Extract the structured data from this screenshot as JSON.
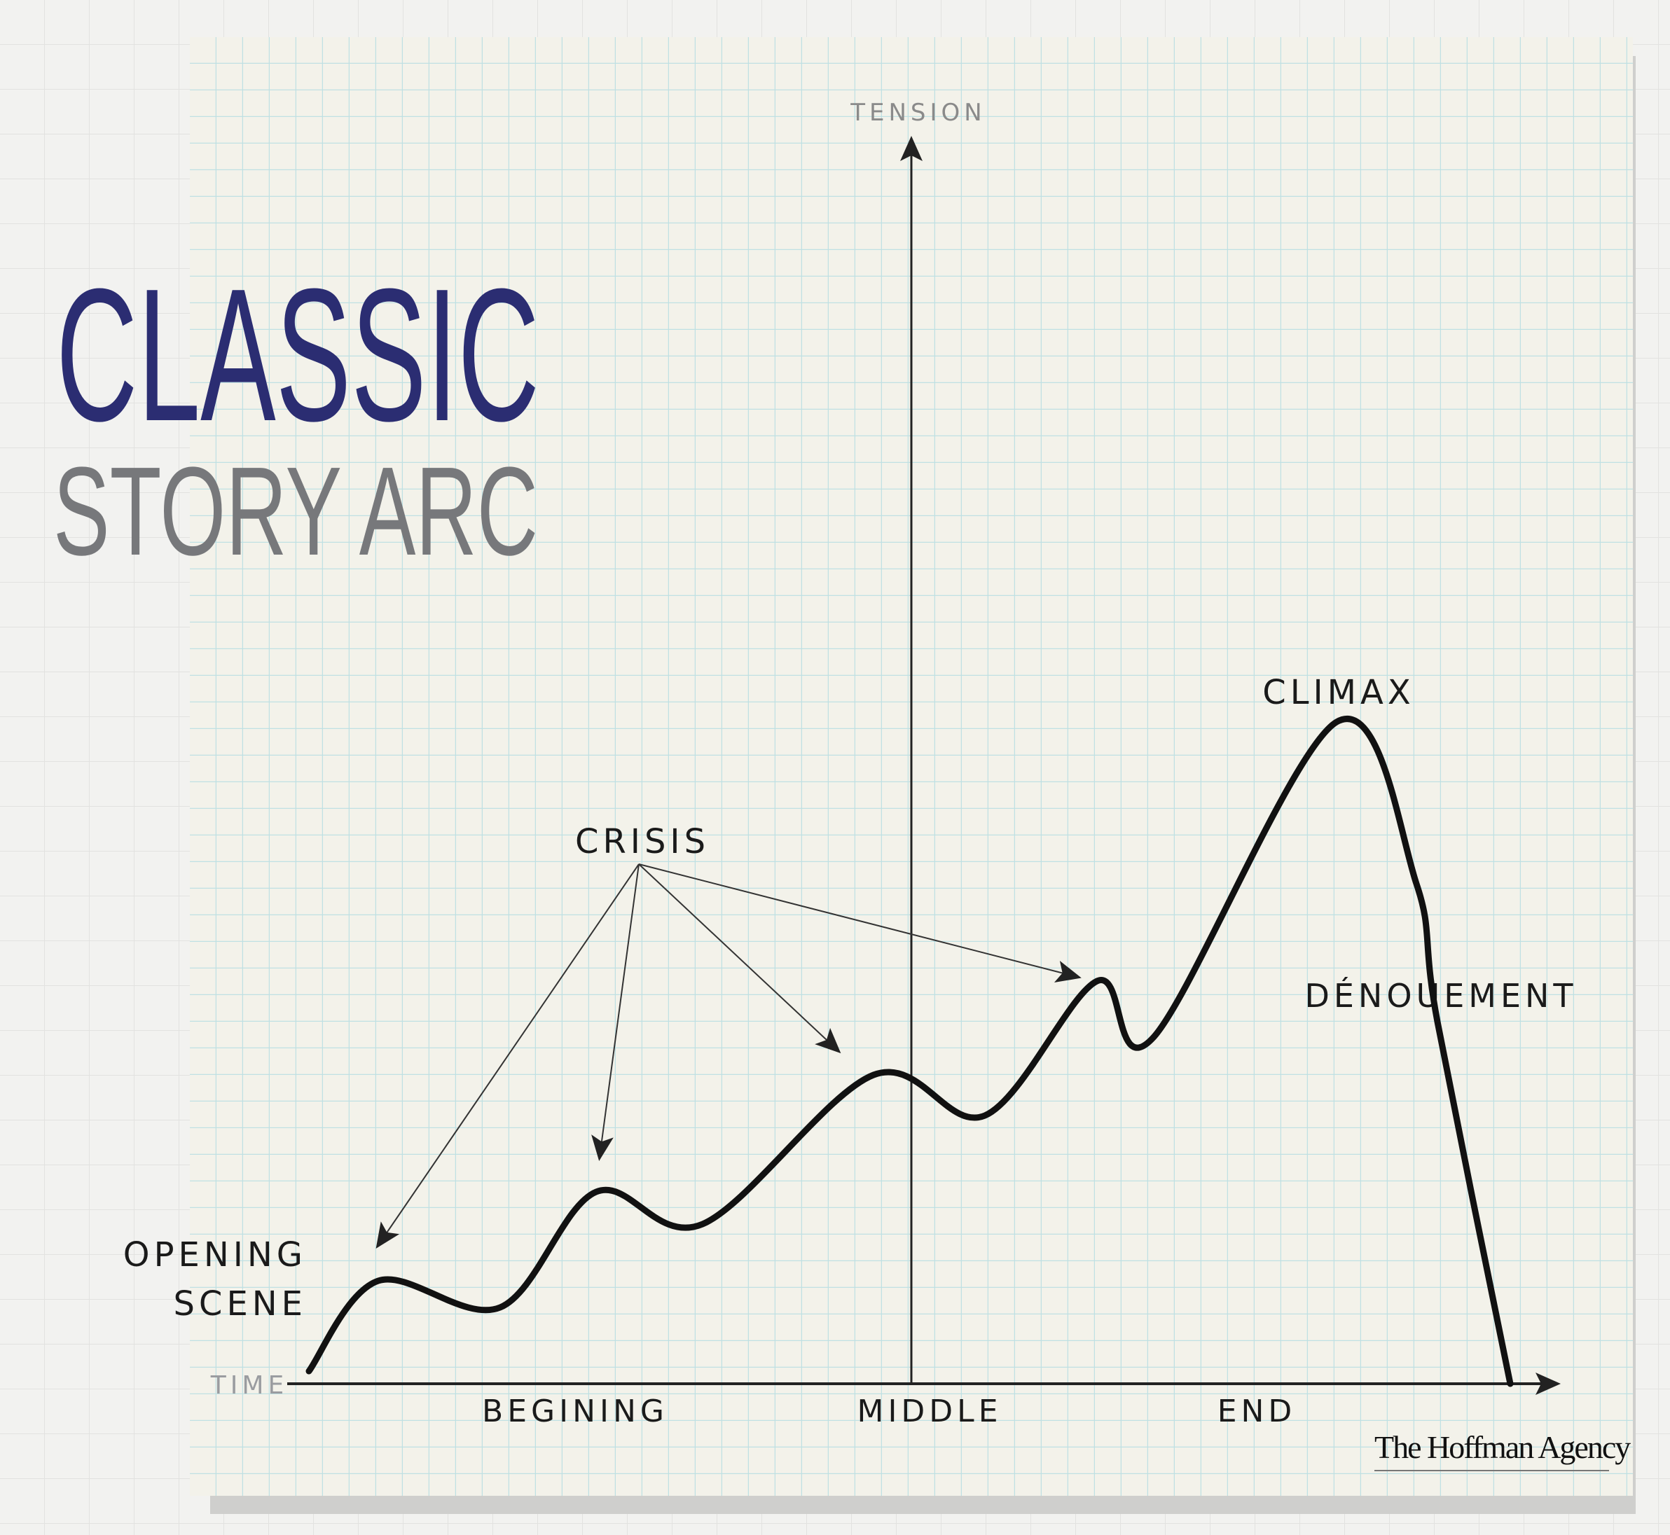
{
  "title": {
    "line1": "CLASSIC",
    "line2": "STORY ARC"
  },
  "axes": {
    "y_label": "TENSION",
    "x_label": "TIME"
  },
  "sections": [
    "BEGINING",
    "MIDDLE",
    "END"
  ],
  "annotations": {
    "opening_line1": "OPENING",
    "opening_line2": "SCENE",
    "crisis": "CRISIS",
    "climax": "CLIMAX",
    "denouement": "DÉNOUEMENT"
  },
  "logo": "The Hoffman Agency",
  "colors": {
    "title_primary": "#2b2d72",
    "title_secondary": "#77787b",
    "grid": "#bfe0e3",
    "paper": "#f3f2ea",
    "ink": "#111111"
  }
}
